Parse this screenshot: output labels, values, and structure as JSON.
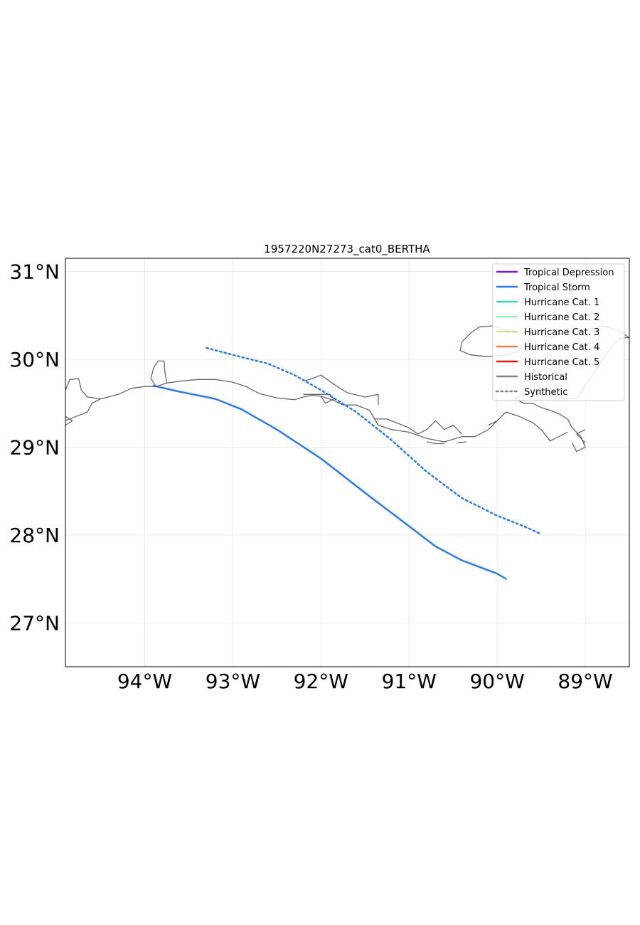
{
  "map": {
    "title": "1957220N27273_cat0_BERTHA",
    "lon_range": [
      -94.9,
      -88.5
    ],
    "lat_range": [
      26.5,
      31.15
    ],
    "lon_ticks": [
      {
        "value": -94,
        "label": "94°W"
      },
      {
        "value": -93,
        "label": "93°W"
      },
      {
        "value": -92,
        "label": "92°W"
      },
      {
        "value": -91,
        "label": "91°W"
      },
      {
        "value": -90,
        "label": "90°W"
      },
      {
        "value": -89,
        "label": "89°W"
      }
    ],
    "lat_ticks": [
      {
        "value": 31,
        "label": "31°N"
      },
      {
        "value": 30,
        "label": "30°N"
      },
      {
        "value": 29,
        "label": "29°N"
      },
      {
        "value": 28,
        "label": "28°N"
      },
      {
        "value": 27,
        "label": "27°N"
      }
    ],
    "grid": true,
    "legend_position": "top-right"
  },
  "legend": {
    "items": [
      {
        "label": "Tropical Depression",
        "color": "#7b1fd6",
        "style": "solid"
      },
      {
        "label": "Tropical Storm",
        "color": "#2b7bec",
        "style": "solid"
      },
      {
        "label": "Hurricane Cat. 1",
        "color": "#3ad7c7",
        "style": "solid"
      },
      {
        "label": "Hurricane Cat. 2",
        "color": "#8ef6b7",
        "style": "solid"
      },
      {
        "label": "Hurricane Cat. 3",
        "color": "#d8dc98",
        "style": "solid"
      },
      {
        "label": "Hurricane Cat. 4",
        "color": "#f4784a",
        "style": "solid"
      },
      {
        "label": "Hurricane Cat. 5",
        "color": "#e8130e",
        "style": "solid"
      },
      {
        "label": "Historical",
        "color": "#808080",
        "style": "solid"
      },
      {
        "label": "Synthetic",
        "color": "#808080",
        "style": "dotted"
      }
    ]
  },
  "tracks": [
    {
      "kind": "historical",
      "category": "Tropical Storm",
      "color": "#2b7bec",
      "points": [
        [
          -93.9,
          29.7
        ],
        [
          -93.6,
          29.63
        ],
        [
          -93.2,
          29.55
        ],
        [
          -92.9,
          29.43
        ],
        [
          -92.5,
          29.2
        ],
        [
          -92.0,
          28.87
        ],
        [
          -91.5,
          28.48
        ],
        [
          -91.0,
          28.1
        ],
        [
          -90.7,
          27.87
        ],
        [
          -90.4,
          27.71
        ],
        [
          -90.0,
          27.56
        ],
        [
          -89.9,
          27.5
        ]
      ]
    },
    {
      "kind": "synthetic",
      "category": "Tropical Storm",
      "color": "#2b7bec",
      "points": [
        [
          -93.3,
          30.13
        ],
        [
          -93.0,
          30.05
        ],
        [
          -92.6,
          29.95
        ],
        [
          -92.3,
          29.82
        ],
        [
          -92.0,
          29.65
        ],
        [
          -91.6,
          29.4
        ],
        [
          -91.2,
          29.08
        ],
        [
          -90.8,
          28.72
        ],
        [
          -90.4,
          28.42
        ],
        [
          -90.0,
          28.22
        ],
        [
          -89.7,
          28.1
        ],
        [
          -89.5,
          28.01
        ]
      ]
    }
  ],
  "coastline": [
    [
      [
        -94.9,
        29.3
      ],
      [
        -94.78,
        29.35
      ],
      [
        -94.65,
        29.4
      ],
      [
        -94.6,
        29.5
      ],
      [
        -94.5,
        29.55
      ],
      [
        -94.3,
        29.6
      ],
      [
        -94.15,
        29.67
      ],
      [
        -94.0,
        29.69
      ],
      [
        -93.87,
        29.69
      ],
      [
        -93.75,
        29.73
      ],
      [
        -93.6,
        29.75
      ],
      [
        -93.4,
        29.77
      ],
      [
        -93.2,
        29.77
      ],
      [
        -93.0,
        29.74
      ],
      [
        -92.85,
        29.69
      ],
      [
        -92.7,
        29.61
      ],
      [
        -92.5,
        29.56
      ],
      [
        -92.3,
        29.54
      ],
      [
        -92.2,
        29.57
      ],
      [
        -92.1,
        29.59
      ],
      [
        -92.0,
        29.58
      ],
      [
        -91.85,
        29.53
      ],
      [
        -91.75,
        29.48
      ],
      [
        -91.6,
        29.48
      ],
      [
        -91.45,
        29.42
      ],
      [
        -91.35,
        29.25
      ],
      [
        -91.2,
        29.2
      ],
      [
        -91.0,
        29.17
      ],
      [
        -90.8,
        29.1
      ],
      [
        -90.6,
        29.06
      ],
      [
        -90.4,
        29.12
      ],
      [
        -90.25,
        29.12
      ],
      [
        -90.1,
        29.2
      ],
      [
        -90.0,
        29.3
      ],
      [
        -89.9,
        29.4
      ],
      [
        -89.75,
        29.35
      ],
      [
        -89.6,
        29.28
      ],
      [
        -89.5,
        29.2
      ],
      [
        -89.4,
        29.07
      ],
      [
        -89.3,
        29.12
      ],
      [
        -89.2,
        29.17
      ]
    ],
    [
      [
        -94.9,
        29.35
      ],
      [
        -94.82,
        29.3
      ],
      [
        -94.9,
        29.25
      ]
    ],
    [
      [
        -94.9,
        29.65
      ],
      [
        -94.85,
        29.77
      ],
      [
        -94.75,
        29.78
      ],
      [
        -94.72,
        29.65
      ],
      [
        -94.65,
        29.57
      ],
      [
        -94.5,
        29.55
      ]
    ],
    [
      [
        -93.87,
        29.69
      ],
      [
        -93.93,
        29.78
      ],
      [
        -93.9,
        29.9
      ],
      [
        -93.85,
        29.98
      ],
      [
        -93.78,
        29.98
      ],
      [
        -93.77,
        29.85
      ],
      [
        -93.75,
        29.73
      ]
    ],
    [
      [
        -92.2,
        29.6
      ],
      [
        -92.05,
        29.6
      ],
      [
        -91.9,
        29.6
      ],
      [
        -91.85,
        29.55
      ],
      [
        -91.95,
        29.5
      ],
      [
        -92.0,
        29.58
      ]
    ],
    [
      [
        -92.2,
        29.75
      ],
      [
        -92.1,
        29.78
      ],
      [
        -92.0,
        29.82
      ],
      [
        -91.9,
        29.75
      ],
      [
        -91.8,
        29.68
      ],
      [
        -91.7,
        29.62
      ],
      [
        -91.5,
        29.57
      ],
      [
        -91.35,
        29.6
      ],
      [
        -91.35,
        29.48
      ]
    ],
    [
      [
        -91.4,
        29.32
      ],
      [
        -91.25,
        29.32
      ],
      [
        -91.2,
        29.3
      ],
      [
        -91.0,
        29.22
      ],
      [
        -90.9,
        29.15
      ],
      [
        -90.8,
        29.2
      ],
      [
        -90.7,
        29.3
      ],
      [
        -90.6,
        29.2
      ],
      [
        -90.5,
        29.25
      ],
      [
        -90.4,
        29.15
      ]
    ],
    [
      [
        -90.8,
        29.06
      ],
      [
        -90.7,
        29.04
      ],
      [
        -90.6,
        29.04
      ]
    ],
    [
      [
        -90.45,
        29.05
      ],
      [
        -90.35,
        29.06
      ]
    ],
    [
      [
        -90.1,
        29.25
      ],
      [
        -90.0,
        29.3
      ]
    ],
    [
      [
        -89.8,
        29.55
      ],
      [
        -89.7,
        29.5
      ],
      [
        -89.6,
        29.5
      ],
      [
        -89.5,
        29.45
      ],
      [
        -89.4,
        29.42
      ],
      [
        -89.3,
        29.38
      ],
      [
        -89.2,
        29.32
      ],
      [
        -89.15,
        29.22
      ],
      [
        -89.05,
        29.12
      ],
      [
        -89.0,
        29.0
      ],
      [
        -89.1,
        28.95
      ],
      [
        -89.15,
        29.05
      ]
    ],
    [
      [
        -89.0,
        29.05
      ],
      [
        -89.1,
        29.15
      ],
      [
        -89.0,
        29.2
      ]
    ],
    [
      [
        -89.8,
        29.55
      ],
      [
        -89.68,
        29.6
      ],
      [
        -89.55,
        29.62
      ],
      [
        -89.45,
        29.6
      ],
      [
        -89.35,
        29.58
      ],
      [
        -89.2,
        29.55
      ],
      [
        -89.1,
        29.55
      ],
      [
        -89.0,
        29.7
      ],
      [
        -88.9,
        29.85
      ],
      [
        -88.8,
        30.0
      ],
      [
        -88.7,
        30.15
      ],
      [
        -88.6,
        30.24
      ],
      [
        -88.5,
        30.25
      ]
    ],
    [
      [
        -90.4,
        30.2
      ],
      [
        -90.3,
        30.3
      ],
      [
        -90.2,
        30.37
      ],
      [
        -90.05,
        30.38
      ],
      [
        -89.9,
        30.33
      ],
      [
        -89.75,
        30.3
      ],
      [
        -89.6,
        30.3
      ],
      [
        -89.4,
        30.25
      ],
      [
        -89.2,
        30.3
      ],
      [
        -89.0,
        30.33
      ],
      [
        -88.8,
        30.38
      ],
      [
        -88.6,
        30.32
      ],
      [
        -88.5,
        30.24
      ]
    ],
    [
      [
        -90.4,
        30.2
      ],
      [
        -90.42,
        30.1
      ],
      [
        -90.3,
        30.05
      ],
      [
        -90.1,
        30.03
      ],
      [
        -89.9,
        30.05
      ],
      [
        -89.75,
        30.1
      ],
      [
        -89.65,
        30.18
      ],
      [
        -89.6,
        30.3
      ]
    ]
  ]
}
